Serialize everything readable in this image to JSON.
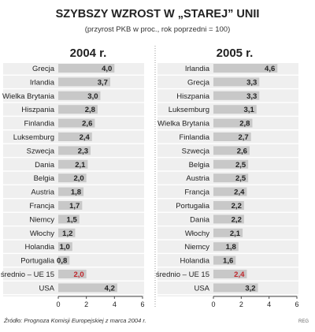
{
  "header": {
    "title": "SZYBSZY WZROST W „STAREJ” UNII",
    "subtitle": "(przyrost PKB w proc., rok poprzedni = 100)"
  },
  "footer": {
    "source": "Źródło: Prognoza Komisji Europejskiej z marca 2004 r.",
    "credit": "REG"
  },
  "colors": {
    "bar": "#c8c8c8",
    "panel_bg": "#efefef",
    "highlight_value": "#c0272d",
    "text": "#222222"
  },
  "chart_data": [
    {
      "type": "bar",
      "orientation": "horizontal",
      "title": "2004 r.",
      "categories": [
        "Grecja",
        "Irlandia",
        "Wielka Brytania",
        "Hiszpania",
        "Finlandia",
        "Luksemburg",
        "Szwecja",
        "Dania",
        "Belgia",
        "Austria",
        "Francja",
        "Niemcy",
        "Włochy",
        "Holandia",
        "Portugalia",
        "średnio – UE 15",
        "USA"
      ],
      "values": [
        4.0,
        3.7,
        3.0,
        2.8,
        2.6,
        2.4,
        2.3,
        2.1,
        2.0,
        1.8,
        1.7,
        1.5,
        1.2,
        1.0,
        0.8,
        2.0,
        4.2
      ],
      "value_labels": [
        "4,0",
        "3,7",
        "3,0",
        "2,8",
        "2,6",
        "2,4",
        "2,3",
        "2,1",
        "2,0",
        "1,8",
        "1,7",
        "1,5",
        "1,2",
        "1,0",
        "0,8",
        "2,0",
        "4,2"
      ],
      "highlight": [
        "średnio – UE 15"
      ],
      "xlim": [
        0,
        6
      ],
      "xticks": [
        0,
        2,
        4,
        6
      ],
      "grid": true
    },
    {
      "type": "bar",
      "orientation": "horizontal",
      "title": "2005 r.",
      "categories": [
        "Irlandia",
        "Grecja",
        "Hiszpania",
        "Luksemburg",
        "Wielka Brytania",
        "Finlandia",
        "Szwecja",
        "Belgia",
        "Austria",
        "Francja",
        "Portugalia",
        "Dania",
        "Włochy",
        "Niemcy",
        "Holandia",
        "średnio – UE 15",
        "USA"
      ],
      "values": [
        4.6,
        3.3,
        3.3,
        3.1,
        2.8,
        2.7,
        2.6,
        2.5,
        2.5,
        2.4,
        2.2,
        2.2,
        2.1,
        1.8,
        1.6,
        2.4,
        3.2
      ],
      "value_labels": [
        "4,6",
        "3,3",
        "3,3",
        "3,1",
        "2,8",
        "2,7",
        "2,6",
        "2,5",
        "2,5",
        "2,4",
        "2,2",
        "2,2",
        "2,1",
        "1,8",
        "1,6",
        "2,4",
        "3,2"
      ],
      "highlight": [
        "średnio – UE 15"
      ],
      "xlim": [
        0,
        6
      ],
      "xticks": [
        0,
        2,
        4,
        6
      ],
      "grid": true
    }
  ]
}
